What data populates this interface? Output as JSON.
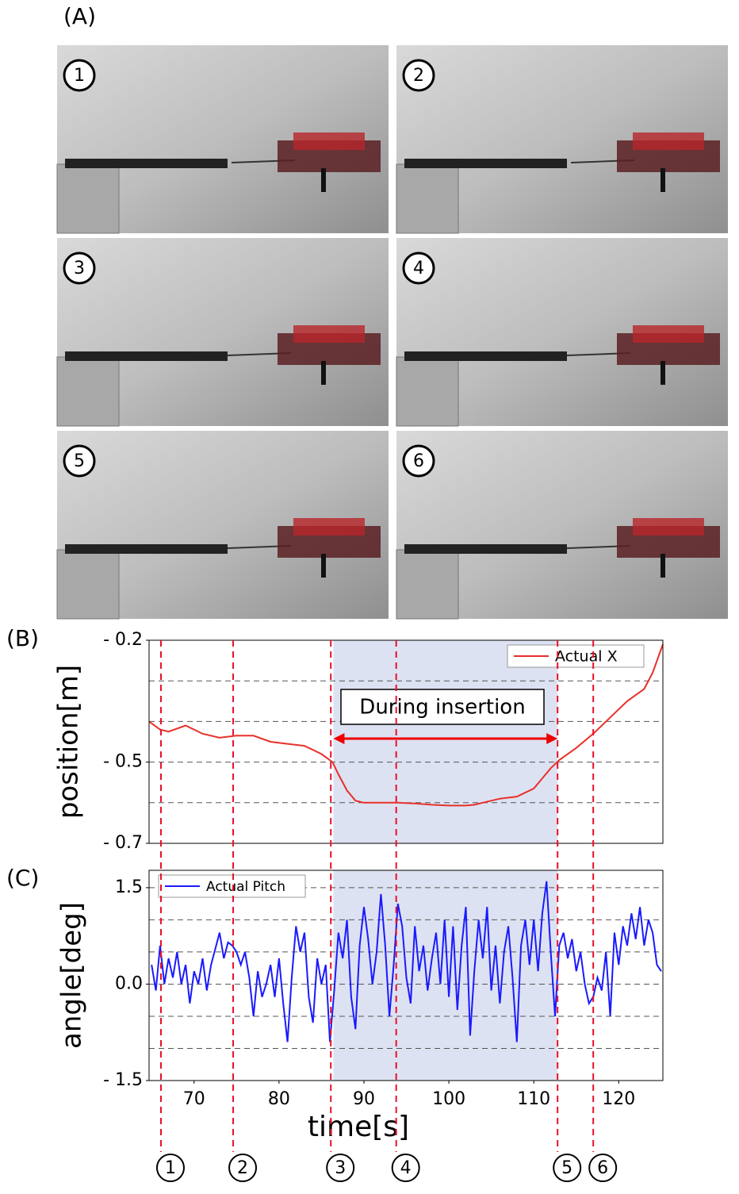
{
  "panel_labels": [
    "(A)",
    "(B)",
    "(C)"
  ],
  "photos": {
    "labels": [
      "1",
      "2",
      "3",
      "4",
      "5",
      "6"
    ]
  },
  "events": {
    "x": [
      66.1,
      74.6,
      86.1,
      93.8,
      112.8,
      117.0
    ],
    "labels": [
      "1",
      "2",
      "3",
      "4",
      "5",
      "6"
    ]
  },
  "span": [
    86.4,
    112.8
  ],
  "chart_data": [
    {
      "type": "line",
      "ylabel": "position[m]",
      "annotation": "During insertion",
      "xlim": [
        64.7,
        125.2
      ],
      "ylim": [
        -0.7,
        -0.2
      ],
      "yticks": [
        {
          "value": -0.2,
          "label": "- 0.2"
        },
        {
          "value": -0.5,
          "label": "- 0.5"
        },
        {
          "value": -0.7,
          "label": "- 0.7"
        }
      ],
      "ygrid": [
        -0.3,
        -0.4,
        -0.5,
        -0.6
      ],
      "legend": "upper right",
      "x": [
        64.7,
        66,
        67,
        69,
        71,
        73,
        75,
        77,
        79,
        81,
        83,
        85,
        86.3,
        87,
        88,
        89,
        90,
        92,
        94,
        96,
        98,
        100,
        102,
        103,
        104,
        106,
        108,
        110,
        111,
        112,
        113,
        115,
        117,
        119,
        121,
        123,
        124,
        125.2
      ],
      "series": [
        {
          "name": "Actual X",
          "color": "#e8302a",
          "values": [
            -0.4,
            -0.42,
            -0.425,
            -0.41,
            -0.43,
            -0.44,
            -0.435,
            -0.435,
            -0.45,
            -0.455,
            -0.46,
            -0.48,
            -0.5,
            -0.53,
            -0.57,
            -0.595,
            -0.6,
            -0.6,
            -0.6,
            -0.602,
            -0.605,
            -0.607,
            -0.607,
            -0.605,
            -0.6,
            -0.59,
            -0.585,
            -0.565,
            -0.54,
            -0.515,
            -0.495,
            -0.465,
            -0.43,
            -0.39,
            -0.35,
            -0.32,
            -0.28,
            -0.21
          ]
        }
      ]
    },
    {
      "type": "line",
      "ylabel": "angle[deg]",
      "xlabel": "time[s]",
      "xlim": [
        64.7,
        125.2
      ],
      "xticks": [
        70,
        80,
        90,
        100,
        110,
        120
      ],
      "ylim": [
        -1.5,
        1.77
      ],
      "yticks": [
        1.5,
        {
          "value": 0,
          "label": "0.0"
        },
        {
          "value": -1.5,
          "label": "- 1.5"
        }
      ],
      "ygrid": [
        1.5,
        1.0,
        0.5,
        0.0,
        -0.5,
        -1.0
      ],
      "legend": "upper left",
      "x": [
        65,
        65.5,
        66,
        66.5,
        67,
        67.5,
        68,
        68.5,
        69,
        69.5,
        70,
        70.5,
        71,
        71.5,
        72,
        73,
        73.5,
        74,
        74.5,
        75,
        75.5,
        76,
        76.5,
        77,
        77.5,
        78,
        78.5,
        79,
        79.5,
        80,
        80.5,
        81,
        81.5,
        82,
        82.5,
        83,
        83.5,
        84,
        84.5,
        85,
        85.5,
        86,
        86.5,
        87,
        87.5,
        88,
        88.5,
        89,
        89.5,
        90,
        90.5,
        91,
        91.5,
        92,
        92.5,
        93,
        93.5,
        94,
        94.5,
        95,
        95.5,
        96,
        96.5,
        97,
        97.5,
        98,
        98.5,
        99,
        99.5,
        100,
        100.5,
        101,
        101.5,
        102,
        102.5,
        103,
        103.5,
        104,
        104.5,
        105,
        105.5,
        106,
        106.5,
        107,
        107.5,
        108,
        108.5,
        109,
        109.5,
        110,
        110.5,
        111,
        111.5,
        112,
        112.5,
        113,
        113.5,
        114,
        114.5,
        115,
        115.5,
        116,
        116.5,
        117,
        117.5,
        118,
        118.5,
        119,
        119.5,
        120,
        120.5,
        121,
        121.5,
        122,
        122.5,
        123,
        123.5,
        124,
        124.5,
        125
      ],
      "series": [
        {
          "name": "Actual Pitch",
          "color": "#1a1aff",
          "values": [
            0.3,
            -0.1,
            0.6,
            0.0,
            0.4,
            0.1,
            0.5,
            0.0,
            0.3,
            -0.3,
            0.2,
            0.0,
            0.4,
            -0.1,
            0.3,
            0.8,
            0.4,
            0.65,
            0.6,
            0.5,
            0.3,
            0.5,
            0.1,
            -0.5,
            0.2,
            -0.2,
            0.0,
            0.3,
            -0.2,
            0.4,
            -0.3,
            -0.9,
            0.1,
            0.9,
            0.5,
            0.8,
            -0.2,
            -0.6,
            0.4,
            0.0,
            0.3,
            -0.9,
            -0.1,
            0.8,
            0.4,
            1.0,
            -0.2,
            -0.7,
            0.6,
            1.2,
            0.7,
            0.0,
            0.5,
            1.4,
            0.6,
            -0.5,
            0.3,
            1.25,
            0.9,
            0.1,
            -0.3,
            0.9,
            0.2,
            0.6,
            -0.1,
            0.4,
            0.8,
            0.0,
            1.0,
            -0.2,
            0.9,
            -0.4,
            0.6,
            1.2,
            -0.8,
            0.2,
            1.0,
            0.4,
            1.2,
            -0.1,
            0.6,
            -0.3,
            0.5,
            0.9,
            0.1,
            -0.9,
            0.6,
            1.0,
            0.3,
            1.0,
            0.2,
            1.1,
            1.6,
            0.5,
            -0.5,
            0.6,
            0.8,
            0.4,
            0.7,
            0.2,
            0.5,
            0.0,
            -0.3,
            -0.2,
            0.1,
            -0.1,
            0.5,
            -0.5,
            0.8,
            0.3,
            0.9,
            0.6,
            1.1,
            0.7,
            1.2,
            0.6,
            1.0,
            0.8,
            0.3,
            0.2
          ]
        }
      ]
    }
  ]
}
